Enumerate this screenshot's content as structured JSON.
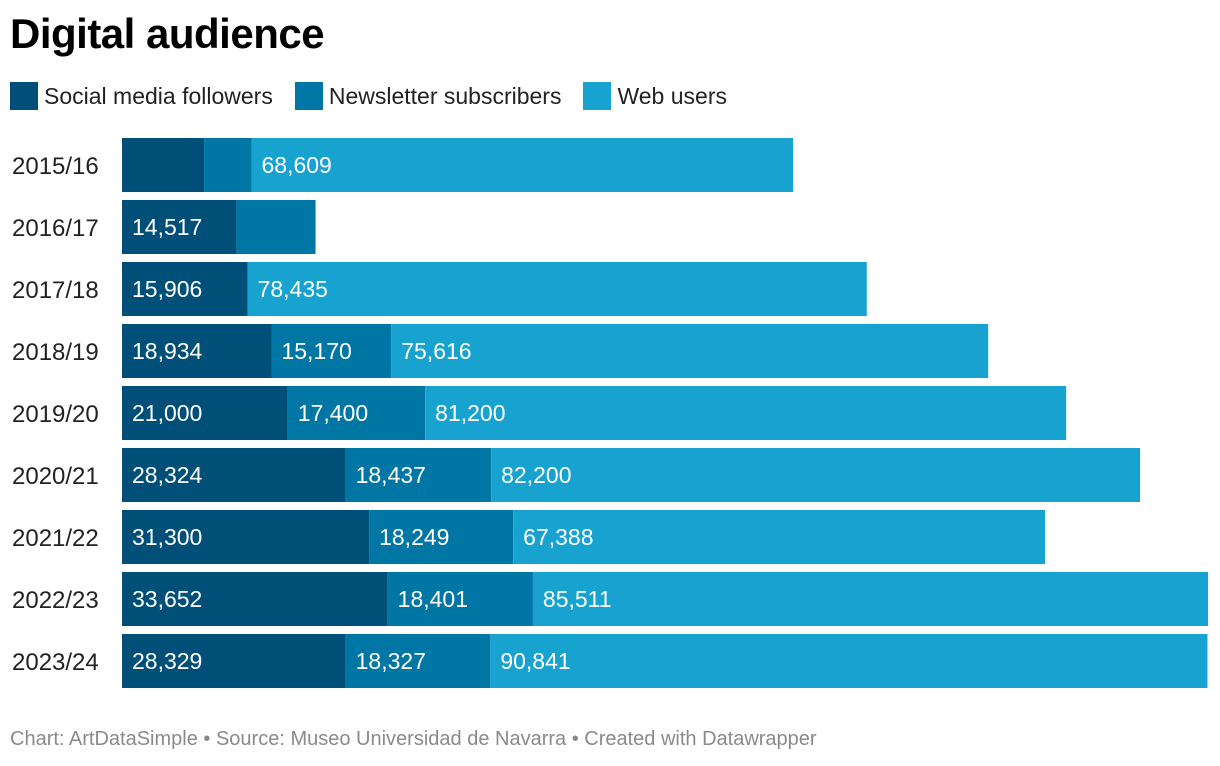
{
  "title": "Digital audience",
  "legend": [
    {
      "label": "Social media followers",
      "color": "#004f79"
    },
    {
      "label": "Newsletter subscribers",
      "color": "#0076a4"
    },
    {
      "label": "Web users",
      "color": "#18a2d0"
    }
  ],
  "footer": {
    "text": "Chart: ArtDataSimple • Source: Museo Universidad de Navarra • Created with Datawrapper"
  },
  "chart_data": {
    "type": "bar",
    "orientation": "horizontal",
    "stacked": true,
    "title": "Digital audience",
    "categories": [
      "2015/16",
      "2016/17",
      "2017/18",
      "2018/19",
      "2019/20",
      "2020/21",
      "2021/22",
      "2022/23",
      "2023/24"
    ],
    "series": [
      {
        "name": "Social media followers",
        "color": "#004f79",
        "values": [
          10400,
          14517,
          15906,
          18934,
          21000,
          28324,
          31300,
          33652,
          28329
        ],
        "labels": [
          "",
          "14,517",
          "15,906",
          "18,934",
          "21,000",
          "28,324",
          "31,300",
          "33,652",
          "28,329"
        ]
      },
      {
        "name": "Newsletter subscribers",
        "color": "#0076a4",
        "values": [
          6000,
          10000,
          0,
          15170,
          17400,
          18437,
          18249,
          18401,
          18327
        ],
        "labels": [
          "",
          "",
          "",
          "15,170",
          "17,400",
          "18,437",
          "18,249",
          "18,401",
          "18,327"
        ]
      },
      {
        "name": "Web users",
        "color": "#18a2d0",
        "values": [
          68609,
          0,
          78435,
          75616,
          81200,
          82200,
          67388,
          85511,
          90841
        ],
        "labels": [
          "68,609",
          "",
          "78,435",
          "75,616",
          "81,200",
          "82,200",
          "67,388",
          "85,511",
          "90,841"
        ]
      }
    ],
    "xlim": [
      0,
      137564
    ],
    "grid": false,
    "legend_position": "top-left"
  }
}
